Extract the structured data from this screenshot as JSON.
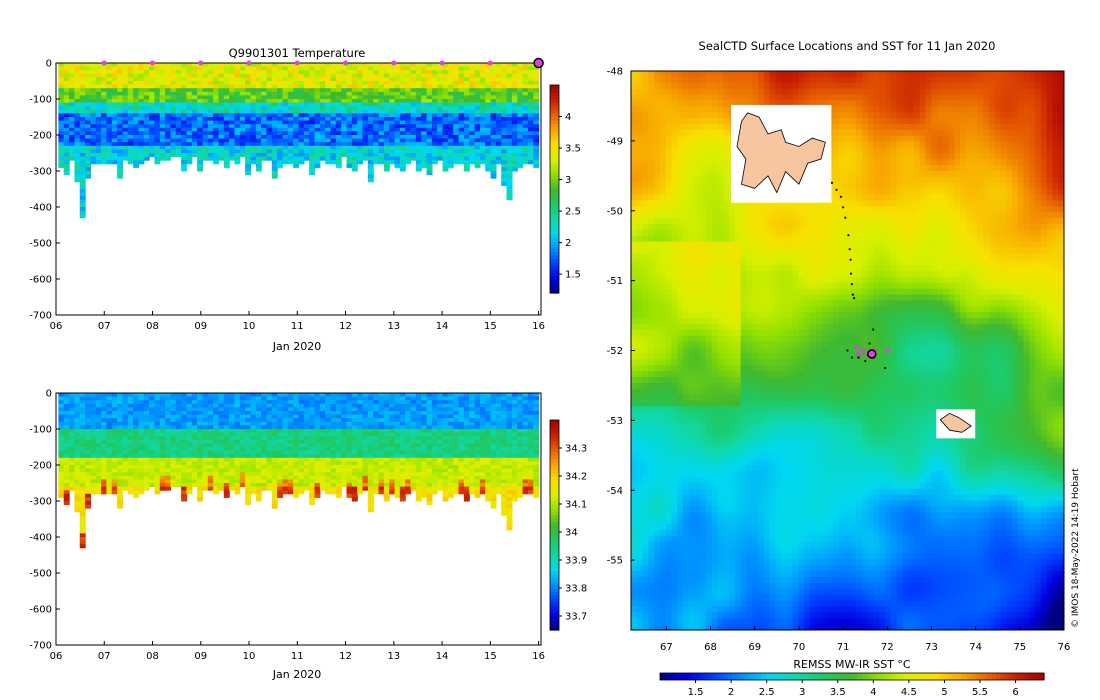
{
  "figure": {
    "credit": "© IMOS 18-May-2022 14:19 Hobart"
  },
  "temperature_panel": {
    "title": "Q9901301  Temperature",
    "xlabel": "Jan 2020"
  },
  "salinity_panel": {
    "title": "",
    "xlabel": "Jan 2020"
  },
  "map_panel": {
    "title": "SealCTD Surface Locations and SST for 11 Jan 2020",
    "colorbar_label": "REMSS MW-IR SST °C"
  },
  "colors": {
    "land": "#f5c6a0",
    "track_current": "#e040e0",
    "track_past": "#000000",
    "cmap": [
      "#00007f",
      "#0000e0",
      "#0040ff",
      "#0090ff",
      "#00d8f0",
      "#10d8a8",
      "#20c860",
      "#40b830",
      "#90e000",
      "#d8f000",
      "#f8e000",
      "#f8a800",
      "#e86000",
      "#c82000",
      "#a00000"
    ]
  },
  "chart_data": [
    {
      "id": "temperature_section",
      "type": "heatmap",
      "title": "Q9901301  Temperature",
      "xlabel": "Jan 2020",
      "ylabel": "",
      "xlim": [
        6,
        16.05
      ],
      "ylim": [
        -700,
        0
      ],
      "xticks": [
        6,
        7,
        8,
        9,
        10,
        11,
        12,
        13,
        14,
        15,
        16
      ],
      "xtick_labels": [
        "06",
        "07",
        "08",
        "09",
        "10",
        "11",
        "12",
        "13",
        "14",
        "15",
        "16"
      ],
      "yticks": [
        0,
        -100,
        -200,
        -300,
        -400,
        -500,
        -600,
        -700
      ],
      "ytick_labels": [
        "0",
        "-100",
        "-200",
        "-300",
        "-400",
        "-500",
        "-600",
        "-700"
      ],
      "colorbar": {
        "min": 1.2,
        "max": 4.5,
        "ticks": [
          1.5,
          2,
          2.5,
          3,
          3.5,
          4
        ],
        "tick_labels": [
          "1.5",
          "2",
          "2.5",
          "3",
          "3.5",
          "4"
        ]
      },
      "profile_depth_approx_m": [
        -290,
        -310,
        -270,
        -325,
        -425,
        -320,
        -280,
        -275,
        -275,
        -275,
        -275,
        -320,
        -270,
        -275,
        -290,
        -275,
        -265,
        -260,
        -280,
        -270,
        -270,
        -260,
        -260,
        -300,
        -275,
        -260,
        -300,
        -270,
        -270,
        -280,
        -270,
        -285,
        -265,
        -280,
        -260,
        -310,
        -280,
        -300,
        -270,
        -270,
        -320,
        -285,
        -280,
        -275,
        -290,
        -280,
        -270,
        -310,
        -290,
        -270,
        -280,
        -275,
        -290,
        -260,
        -290,
        -300,
        -280,
        -270,
        -330,
        -280,
        -275,
        -300,
        -280,
        -290,
        -300,
        -280,
        -270,
        -300,
        -290,
        -310,
        -280,
        -270,
        -300,
        -290,
        -280,
        -275,
        -300,
        -280,
        -290,
        -280,
        -300,
        -320,
        -280,
        -340,
        -380,
        -300,
        -290,
        -280,
        -275,
        -290
      ],
      "surface_markers_day": [
        7,
        8,
        9,
        10,
        11,
        12,
        13,
        14,
        15
      ],
      "current_profile_day": 16.0,
      "layers": [
        {
          "depth_range_m": [
            0,
            -70
          ],
          "temperature_C": 3.4
        },
        {
          "depth_range_m": [
            -70,
            -110
          ],
          "temperature_C": 2.9
        },
        {
          "depth_range_m": [
            -110,
            -140
          ],
          "temperature_C": 2.3
        },
        {
          "depth_range_m": [
            -140,
            -230
          ],
          "temperature_C": 1.8
        },
        {
          "depth_range_m": [
            -230,
            -330
          ],
          "temperature_C": 2.2
        }
      ]
    },
    {
      "id": "salinity_section",
      "type": "heatmap",
      "title": "",
      "xlabel": "Jan 2020",
      "ylabel": "",
      "xlim": [
        6,
        16.05
      ],
      "ylim": [
        -700,
        0
      ],
      "xticks": [
        6,
        7,
        8,
        9,
        10,
        11,
        12,
        13,
        14,
        15,
        16
      ],
      "xtick_labels": [
        "06",
        "07",
        "08",
        "09",
        "10",
        "11",
        "12",
        "13",
        "14",
        "15",
        "16"
      ],
      "yticks": [
        0,
        -100,
        -200,
        -300,
        -400,
        -500,
        -600,
        -700
      ],
      "ytick_labels": [
        "0",
        "-100",
        "-200",
        "-300",
        "-400",
        "-500",
        "-600",
        "-700"
      ],
      "colorbar": {
        "min": 33.65,
        "max": 34.4,
        "ticks": [
          33.7,
          33.8,
          33.9,
          34,
          34.1,
          34.2,
          34.3
        ],
        "tick_labels": [
          "33.7",
          "33.8",
          "33.9",
          "34",
          "34.1",
          "34.2",
          "34.3"
        ]
      },
      "layers": [
        {
          "depth_range_m": [
            0,
            -100
          ],
          "salinity": 33.82
        },
        {
          "depth_range_m": [
            -100,
            -180
          ],
          "salinity": 33.95
        },
        {
          "depth_range_m": [
            -180,
            -260
          ],
          "salinity": 34.12
        },
        {
          "depth_range_m": [
            -260,
            -330
          ],
          "salinity": 34.18
        }
      ]
    },
    {
      "id": "sst_map",
      "type": "heatmap",
      "title": "SealCTD Surface Locations and SST for 11 Jan 2020",
      "xlabel": "",
      "ylabel": "",
      "xlim": [
        66.2,
        76
      ],
      "ylim": [
        -56,
        -48
      ],
      "xticks": [
        67,
        68,
        69,
        70,
        71,
        72,
        73,
        74,
        75,
        76
      ],
      "xtick_labels": [
        "67",
        "68",
        "69",
        "70",
        "71",
        "72",
        "73",
        "74",
        "75",
        "76"
      ],
      "yticks": [
        -48,
        -49,
        -50,
        -51,
        -52,
        -53,
        -54,
        -55
      ],
      "ytick_labels": [
        "-48",
        "-49",
        "-50",
        "-51",
        "-52",
        "-53",
        "-54",
        "-55"
      ],
      "colorbar": {
        "label": "REMSS MW-IR SST °C",
        "min": 1.0,
        "max": 6.4,
        "ticks": [
          1.5,
          2,
          2.5,
          3,
          3.5,
          4,
          4.5,
          5,
          5.5,
          6
        ],
        "tick_labels": [
          "1.5",
          "2",
          "2.5",
          "3",
          "3.5",
          "4",
          "4.5",
          "5",
          "5.5",
          "6"
        ]
      },
      "islands": [
        {
          "name_hint": "Kerguelen",
          "lon_range": [
            68.6,
            70.6
          ],
          "lat_range": [
            -49.8,
            -48.6
          ]
        },
        {
          "name_hint": "Heard",
          "lon_range": [
            73.2,
            73.9
          ],
          "lat_range": [
            -53.2,
            -52.9
          ]
        }
      ],
      "track_past": [
        [
          70.75,
          -49.6
        ],
        [
          70.85,
          -49.7
        ],
        [
          70.95,
          -49.8
        ],
        [
          71.0,
          -49.95
        ],
        [
          71.05,
          -50.1
        ],
        [
          71.12,
          -50.35
        ],
        [
          71.15,
          -50.55
        ],
        [
          71.17,
          -50.7
        ],
        [
          71.18,
          -50.9
        ],
        [
          71.2,
          -51.05
        ],
        [
          71.22,
          -51.2
        ],
        [
          71.25,
          -51.25
        ],
        [
          71.68,
          -51.7
        ],
        [
          71.6,
          -51.9
        ],
        [
          71.1,
          -52.0
        ],
        [
          71.2,
          -52.1
        ],
        [
          71.35,
          -52.1
        ],
        [
          71.5,
          -52.15
        ],
        [
          71.7,
          -52.1
        ],
        [
          71.95,
          -52.25
        ]
      ],
      "track_current": [
        [
          71.3,
          -51.95
        ],
        [
          71.45,
          -52.0
        ],
        [
          71.55,
          -52.05
        ],
        [
          71.35,
          -52.05
        ],
        [
          71.7,
          -52.0
        ],
        [
          72.0,
          -52.0
        ]
      ],
      "current_position": [
        71.65,
        -52.05
      ]
    }
  ]
}
